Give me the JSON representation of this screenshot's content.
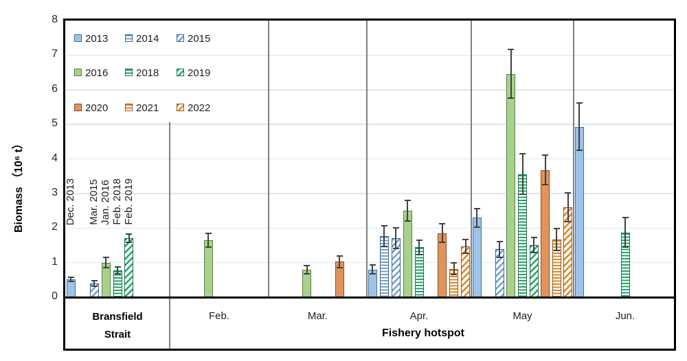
{
  "chart_data": {
    "type": "bar",
    "title": "",
    "ylabel": "Biomass （10⁶ t）",
    "ylim": [
      0,
      8
    ],
    "yticks": [
      "0",
      "1",
      "2",
      "3",
      "4",
      "5",
      "6",
      "7",
      "8"
    ],
    "grid": "horizontal gridlines at each integer",
    "legend_position": "top-left inside plot, 3 columns x 3 rows",
    "series_years": [
      "2013",
      "2014",
      "2015",
      "2016",
      "2018",
      "2019",
      "2020",
      "2021",
      "2022"
    ],
    "series_styles": {
      "2013": {
        "fill": "solid",
        "color": "#9DC3E6",
        "border": "#41719C"
      },
      "2014": {
        "fill": "hstripe",
        "color": "#6F9FCC",
        "border": "#3D648C"
      },
      "2015": {
        "fill": "dstripe",
        "color": "#6F9FCC",
        "border": "#3D648C"
      },
      "2016": {
        "fill": "solid",
        "color": "#A9D18E",
        "border": "#548235"
      },
      "2018": {
        "fill": "hstripe",
        "color": "#21A366",
        "border": "#17744E"
      },
      "2019": {
        "fill": "dstripe",
        "color": "#21A366",
        "border": "#17744E"
      },
      "2020": {
        "fill": "solid",
        "color": "#E0945B",
        "border": "#8C4A21"
      },
      "2021": {
        "fill": "hstripe",
        "color": "#E08426",
        "border": "#9C5312"
      },
      "2022": {
        "fill": "dstripe",
        "color": "#E08426",
        "border": "#9C5312"
      }
    },
    "groups": [
      {
        "label": "Bransfield Strait",
        "bars": [
          {
            "year": "2013",
            "value": 0.52,
            "err": 0.06,
            "point_label": "Dec. 2013"
          },
          {
            "year": "2015",
            "value": 0.4,
            "err": 0.08,
            "point_label": "Mar. 2015"
          },
          {
            "year": "2016",
            "value": 1.0,
            "err": 0.15,
            "point_label": "Jan. 2016"
          },
          {
            "year": "2018",
            "value": 0.78,
            "err": 0.1,
            "point_label": "Feb. 2018"
          },
          {
            "year": "2019",
            "value": 1.7,
            "err": 0.12,
            "point_label": "Feb. 2019"
          }
        ]
      },
      {
        "label": "Feb.",
        "bars": [
          {
            "year": "2016",
            "value": 1.65,
            "err": 0.2
          }
        ]
      },
      {
        "label": "Mar.",
        "bars": [
          {
            "year": "2016",
            "value": 0.8,
            "err": 0.12
          },
          {
            "year": "2020",
            "value": 1.03,
            "err": 0.17
          }
        ]
      },
      {
        "label": "Apr.",
        "bars": [
          {
            "year": "2013",
            "value": 0.8,
            "err": 0.13
          },
          {
            "year": "2014",
            "value": 1.76,
            "err": 0.3
          },
          {
            "year": "2015",
            "value": 1.71,
            "err": 0.3
          },
          {
            "year": "2016",
            "value": 2.5,
            "err": 0.3
          },
          {
            "year": "2018",
            "value": 1.44,
            "err": 0.2
          },
          {
            "year": "2020",
            "value": 1.85,
            "err": 0.27
          },
          {
            "year": "2021",
            "value": 0.82,
            "err": 0.17
          },
          {
            "year": "2022",
            "value": 1.47,
            "err": 0.2
          }
        ]
      },
      {
        "label": "May",
        "bars": [
          {
            "year": "2013",
            "value": 2.3,
            "err": 0.27
          },
          {
            "year": "2015",
            "value": 1.38,
            "err": 0.22
          },
          {
            "year": "2016",
            "value": 6.46,
            "err": 0.7
          },
          {
            "year": "2018",
            "value": 3.56,
            "err": 0.58
          },
          {
            "year": "2019",
            "value": 1.51,
            "err": 0.22
          },
          {
            "year": "2020",
            "value": 3.68,
            "err": 0.43
          },
          {
            "year": "2021",
            "value": 1.66,
            "err": 0.32
          },
          {
            "year": "2022",
            "value": 2.6,
            "err": 0.41
          }
        ]
      },
      {
        "label": "Jun.",
        "bars": [
          {
            "year": "2013",
            "value": 4.93,
            "err": 0.68
          },
          {
            "year": "2018",
            "value": 1.87,
            "err": 0.43
          }
        ]
      }
    ],
    "x_axis": {
      "area_label_line1": "Bransfield",
      "area_label_line2": "Strait",
      "region_label": "Fishery hotspot"
    },
    "colors": {
      "grid": "#DCE6F2",
      "divider": "#7F7F7F",
      "frame": "#000000",
      "error_bar": "#404040",
      "text": "#1F1F1F"
    }
  }
}
